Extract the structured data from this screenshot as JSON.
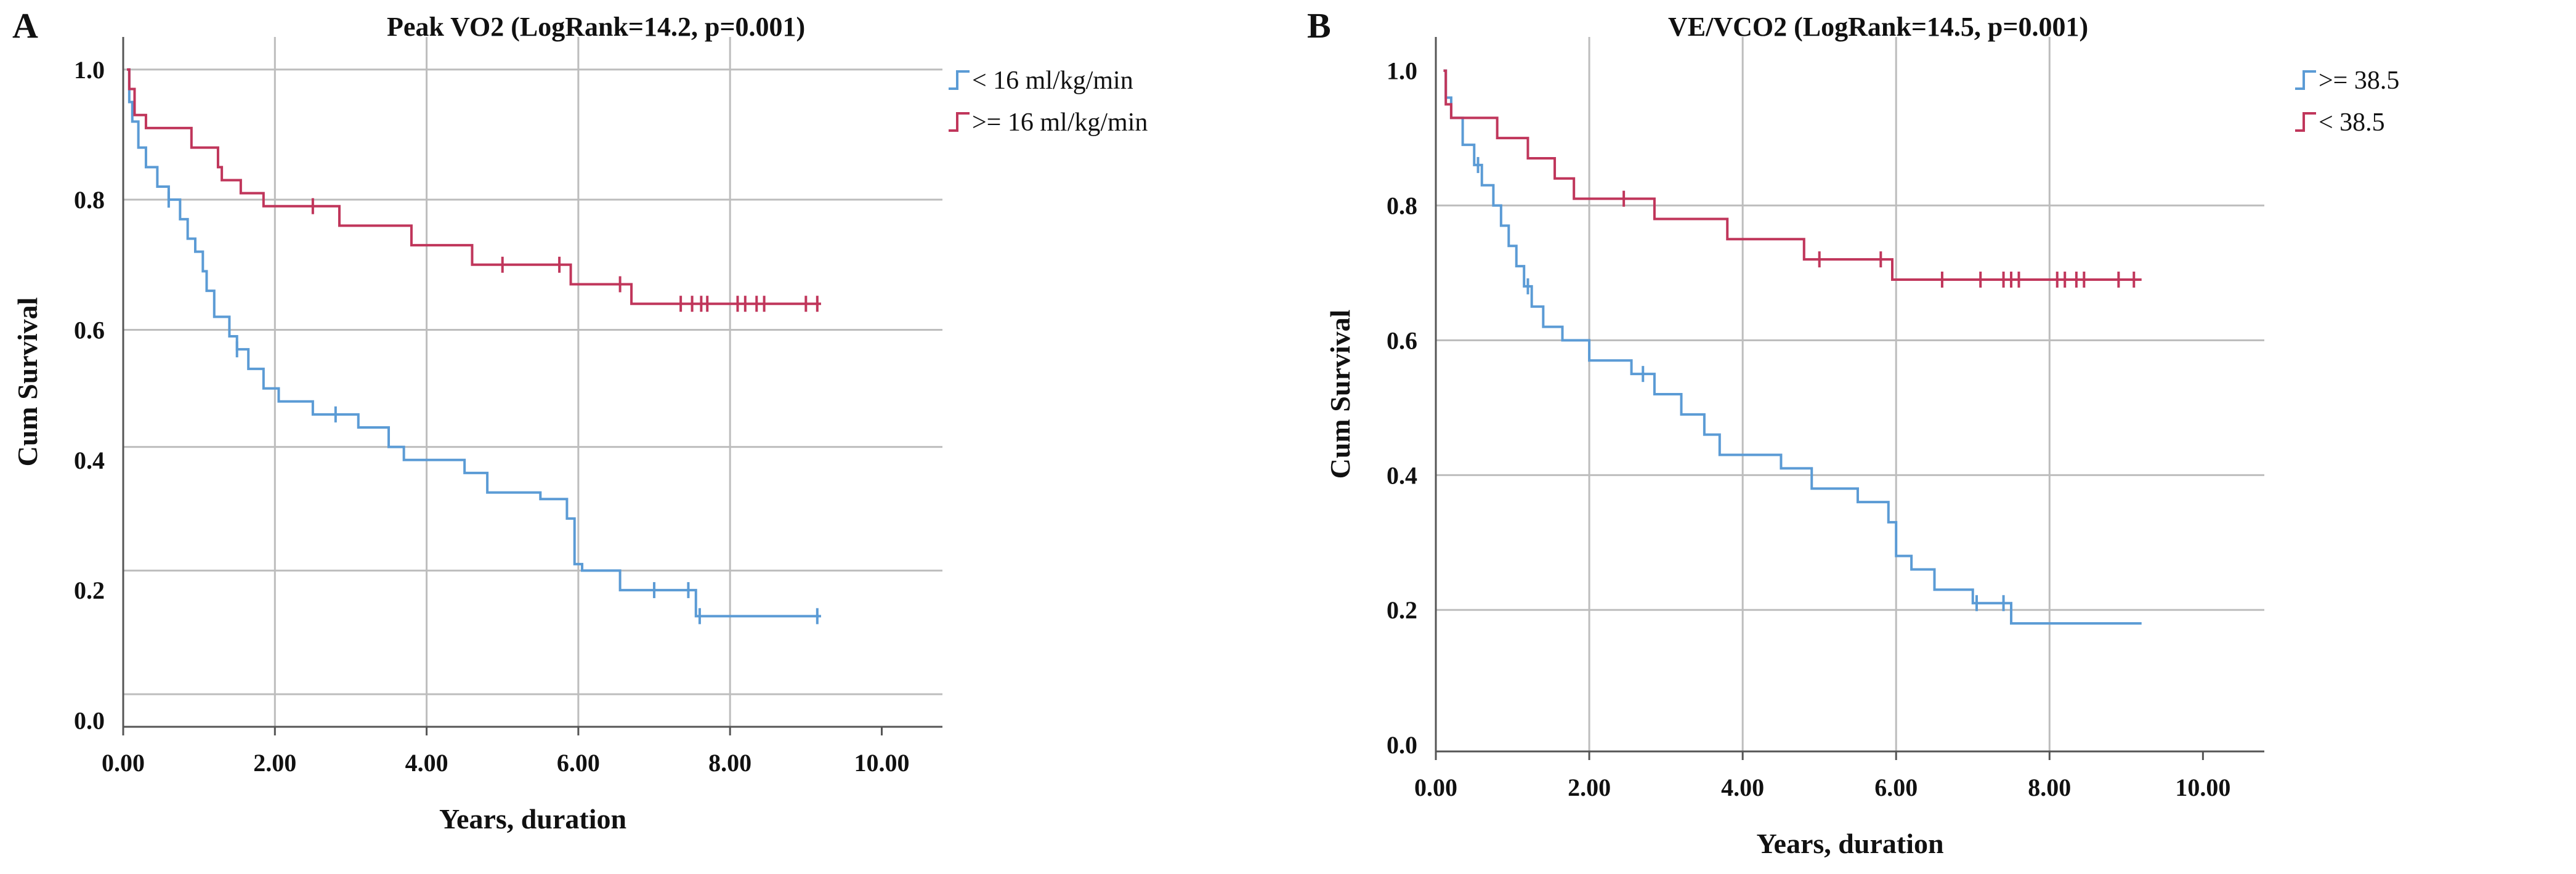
{
  "chart_data": [
    {
      "type": "line",
      "panel": "A",
      "title": "Peak VO2 (LogRank=14.2, p=0.001)",
      "xlabel": "Years, duration",
      "ylabel": "Cum Survival",
      "xlim": [
        0,
        10.8
      ],
      "ylim": [
        -0.01,
        1.05
      ],
      "xticks": [
        0,
        2,
        4,
        6,
        8,
        10
      ],
      "xtick_labels": [
        "0.00",
        "2.00",
        "4.00",
        "6.00",
        "8.00",
        "10.00"
      ],
      "yticks": [
        0.0,
        0.2,
        0.4,
        0.6,
        0.8,
        1.0
      ],
      "ytick_labels": [
        "0.0",
        "0.2",
        "0.4",
        "0.6",
        "0.8",
        "1.0"
      ],
      "ygrid": [
        0.04,
        0.23,
        0.42,
        0.6,
        0.8,
        1.0
      ],
      "xgrid": [
        2,
        4,
        6,
        8
      ],
      "legend_position": "top-right",
      "series": [
        {
          "name": "< 16 ml/kg/min",
          "color": "#5b9bd5",
          "steps": [
            [
              0.05,
              1.0
            ],
            [
              0.08,
              0.95
            ],
            [
              0.12,
              0.92
            ],
            [
              0.2,
              0.88
            ],
            [
              0.3,
              0.85
            ],
            [
              0.45,
              0.82
            ],
            [
              0.6,
              0.8
            ],
            [
              0.75,
              0.77
            ],
            [
              0.85,
              0.74
            ],
            [
              0.95,
              0.72
            ],
            [
              1.05,
              0.69
            ],
            [
              1.1,
              0.66
            ],
            [
              1.2,
              0.62
            ],
            [
              1.4,
              0.59
            ],
            [
              1.5,
              0.57
            ],
            [
              1.65,
              0.54
            ],
            [
              1.85,
              0.51
            ],
            [
              2.05,
              0.49
            ],
            [
              2.5,
              0.47
            ],
            [
              3.1,
              0.45
            ],
            [
              3.5,
              0.42
            ],
            [
              3.7,
              0.4
            ],
            [
              4.5,
              0.38
            ],
            [
              4.8,
              0.35
            ],
            [
              5.5,
              0.34
            ],
            [
              5.85,
              0.31
            ],
            [
              5.95,
              0.24
            ],
            [
              6.05,
              0.23
            ],
            [
              6.55,
              0.2
            ],
            [
              7.55,
              0.16
            ],
            [
              9.2,
              0.16
            ]
          ],
          "censored": [
            0.6,
            1.5,
            2.8,
            7.0,
            7.45,
            7.6,
            9.15
          ]
        },
        {
          "name": ">= 16 ml/kg/min",
          "color": "#c0365b",
          "steps": [
            [
              0.05,
              1.0
            ],
            [
              0.08,
              0.97
            ],
            [
              0.15,
              0.93
            ],
            [
              0.3,
              0.91
            ],
            [
              0.9,
              0.88
            ],
            [
              1.25,
              0.85
            ],
            [
              1.3,
              0.83
            ],
            [
              1.55,
              0.81
            ],
            [
              1.85,
              0.79
            ],
            [
              2.85,
              0.76
            ],
            [
              3.8,
              0.73
            ],
            [
              4.6,
              0.7
            ],
            [
              5.9,
              0.67
            ],
            [
              6.7,
              0.64
            ],
            [
              9.2,
              0.64
            ]
          ],
          "censored": [
            2.5,
            5.0,
            5.75,
            6.55,
            7.35,
            7.5,
            7.62,
            7.7,
            8.1,
            8.2,
            8.35,
            8.45,
            9.0,
            9.15
          ]
        }
      ]
    },
    {
      "type": "line",
      "panel": "B",
      "title": "VE/VCO2 (LogRank=14.5, p=0.001)",
      "xlabel": "Years, duration",
      "ylabel": "Cum Survival",
      "xlim": [
        0,
        10.8
      ],
      "ylim": [
        -0.01,
        1.05
      ],
      "xticks": [
        0,
        2,
        4,
        6,
        8,
        10
      ],
      "xtick_labels": [
        "0.00",
        "2.00",
        "4.00",
        "6.00",
        "8.00",
        "10.00"
      ],
      "yticks": [
        0.0,
        0.2,
        0.4,
        0.6,
        0.8,
        1.0
      ],
      "ytick_labels": [
        "0.0",
        "0.2",
        "0.4",
        "0.6",
        "0.8",
        "1.0"
      ],
      "ygrid": [
        0.2,
        0.4,
        0.6,
        0.8
      ],
      "xgrid": [
        2,
        4,
        6,
        8
      ],
      "legend_position": "top-right",
      "series": [
        {
          "name": ">= 38.5",
          "color": "#5b9bd5",
          "steps": [
            [
              0.1,
              1.0
            ],
            [
              0.13,
              0.96
            ],
            [
              0.2,
              0.93
            ],
            [
              0.35,
              0.89
            ],
            [
              0.5,
              0.86
            ],
            [
              0.6,
              0.83
            ],
            [
              0.75,
              0.8
            ],
            [
              0.85,
              0.77
            ],
            [
              0.95,
              0.74
            ],
            [
              1.05,
              0.71
            ],
            [
              1.15,
              0.68
            ],
            [
              1.25,
              0.65
            ],
            [
              1.4,
              0.62
            ],
            [
              1.65,
              0.6
            ],
            [
              2.0,
              0.57
            ],
            [
              2.55,
              0.55
            ],
            [
              2.85,
              0.52
            ],
            [
              3.2,
              0.49
            ],
            [
              3.5,
              0.46
            ],
            [
              3.7,
              0.43
            ],
            [
              4.5,
              0.41
            ],
            [
              4.9,
              0.38
            ],
            [
              5.5,
              0.36
            ],
            [
              5.9,
              0.33
            ],
            [
              6.0,
              0.28
            ],
            [
              6.2,
              0.26
            ],
            [
              6.5,
              0.23
            ],
            [
              7.0,
              0.21
            ],
            [
              7.5,
              0.18
            ],
            [
              9.2,
              0.18
            ]
          ],
          "censored": [
            0.55,
            1.2,
            2.7,
            7.05,
            7.4
          ]
        },
        {
          "name": "< 38.5",
          "color": "#c0365b",
          "steps": [
            [
              0.1,
              1.0
            ],
            [
              0.13,
              0.95
            ],
            [
              0.2,
              0.93
            ],
            [
              0.8,
              0.9
            ],
            [
              1.2,
              0.87
            ],
            [
              1.55,
              0.84
            ],
            [
              1.8,
              0.81
            ],
            [
              2.85,
              0.78
            ],
            [
              3.8,
              0.75
            ],
            [
              4.8,
              0.72
            ],
            [
              5.95,
              0.69
            ],
            [
              9.2,
              0.69
            ]
          ],
          "censored": [
            2.45,
            5.0,
            5.8,
            6.6,
            7.1,
            7.4,
            7.5,
            7.6,
            8.1,
            8.2,
            8.35,
            8.45,
            8.9,
            9.1
          ]
        }
      ]
    }
  ]
}
